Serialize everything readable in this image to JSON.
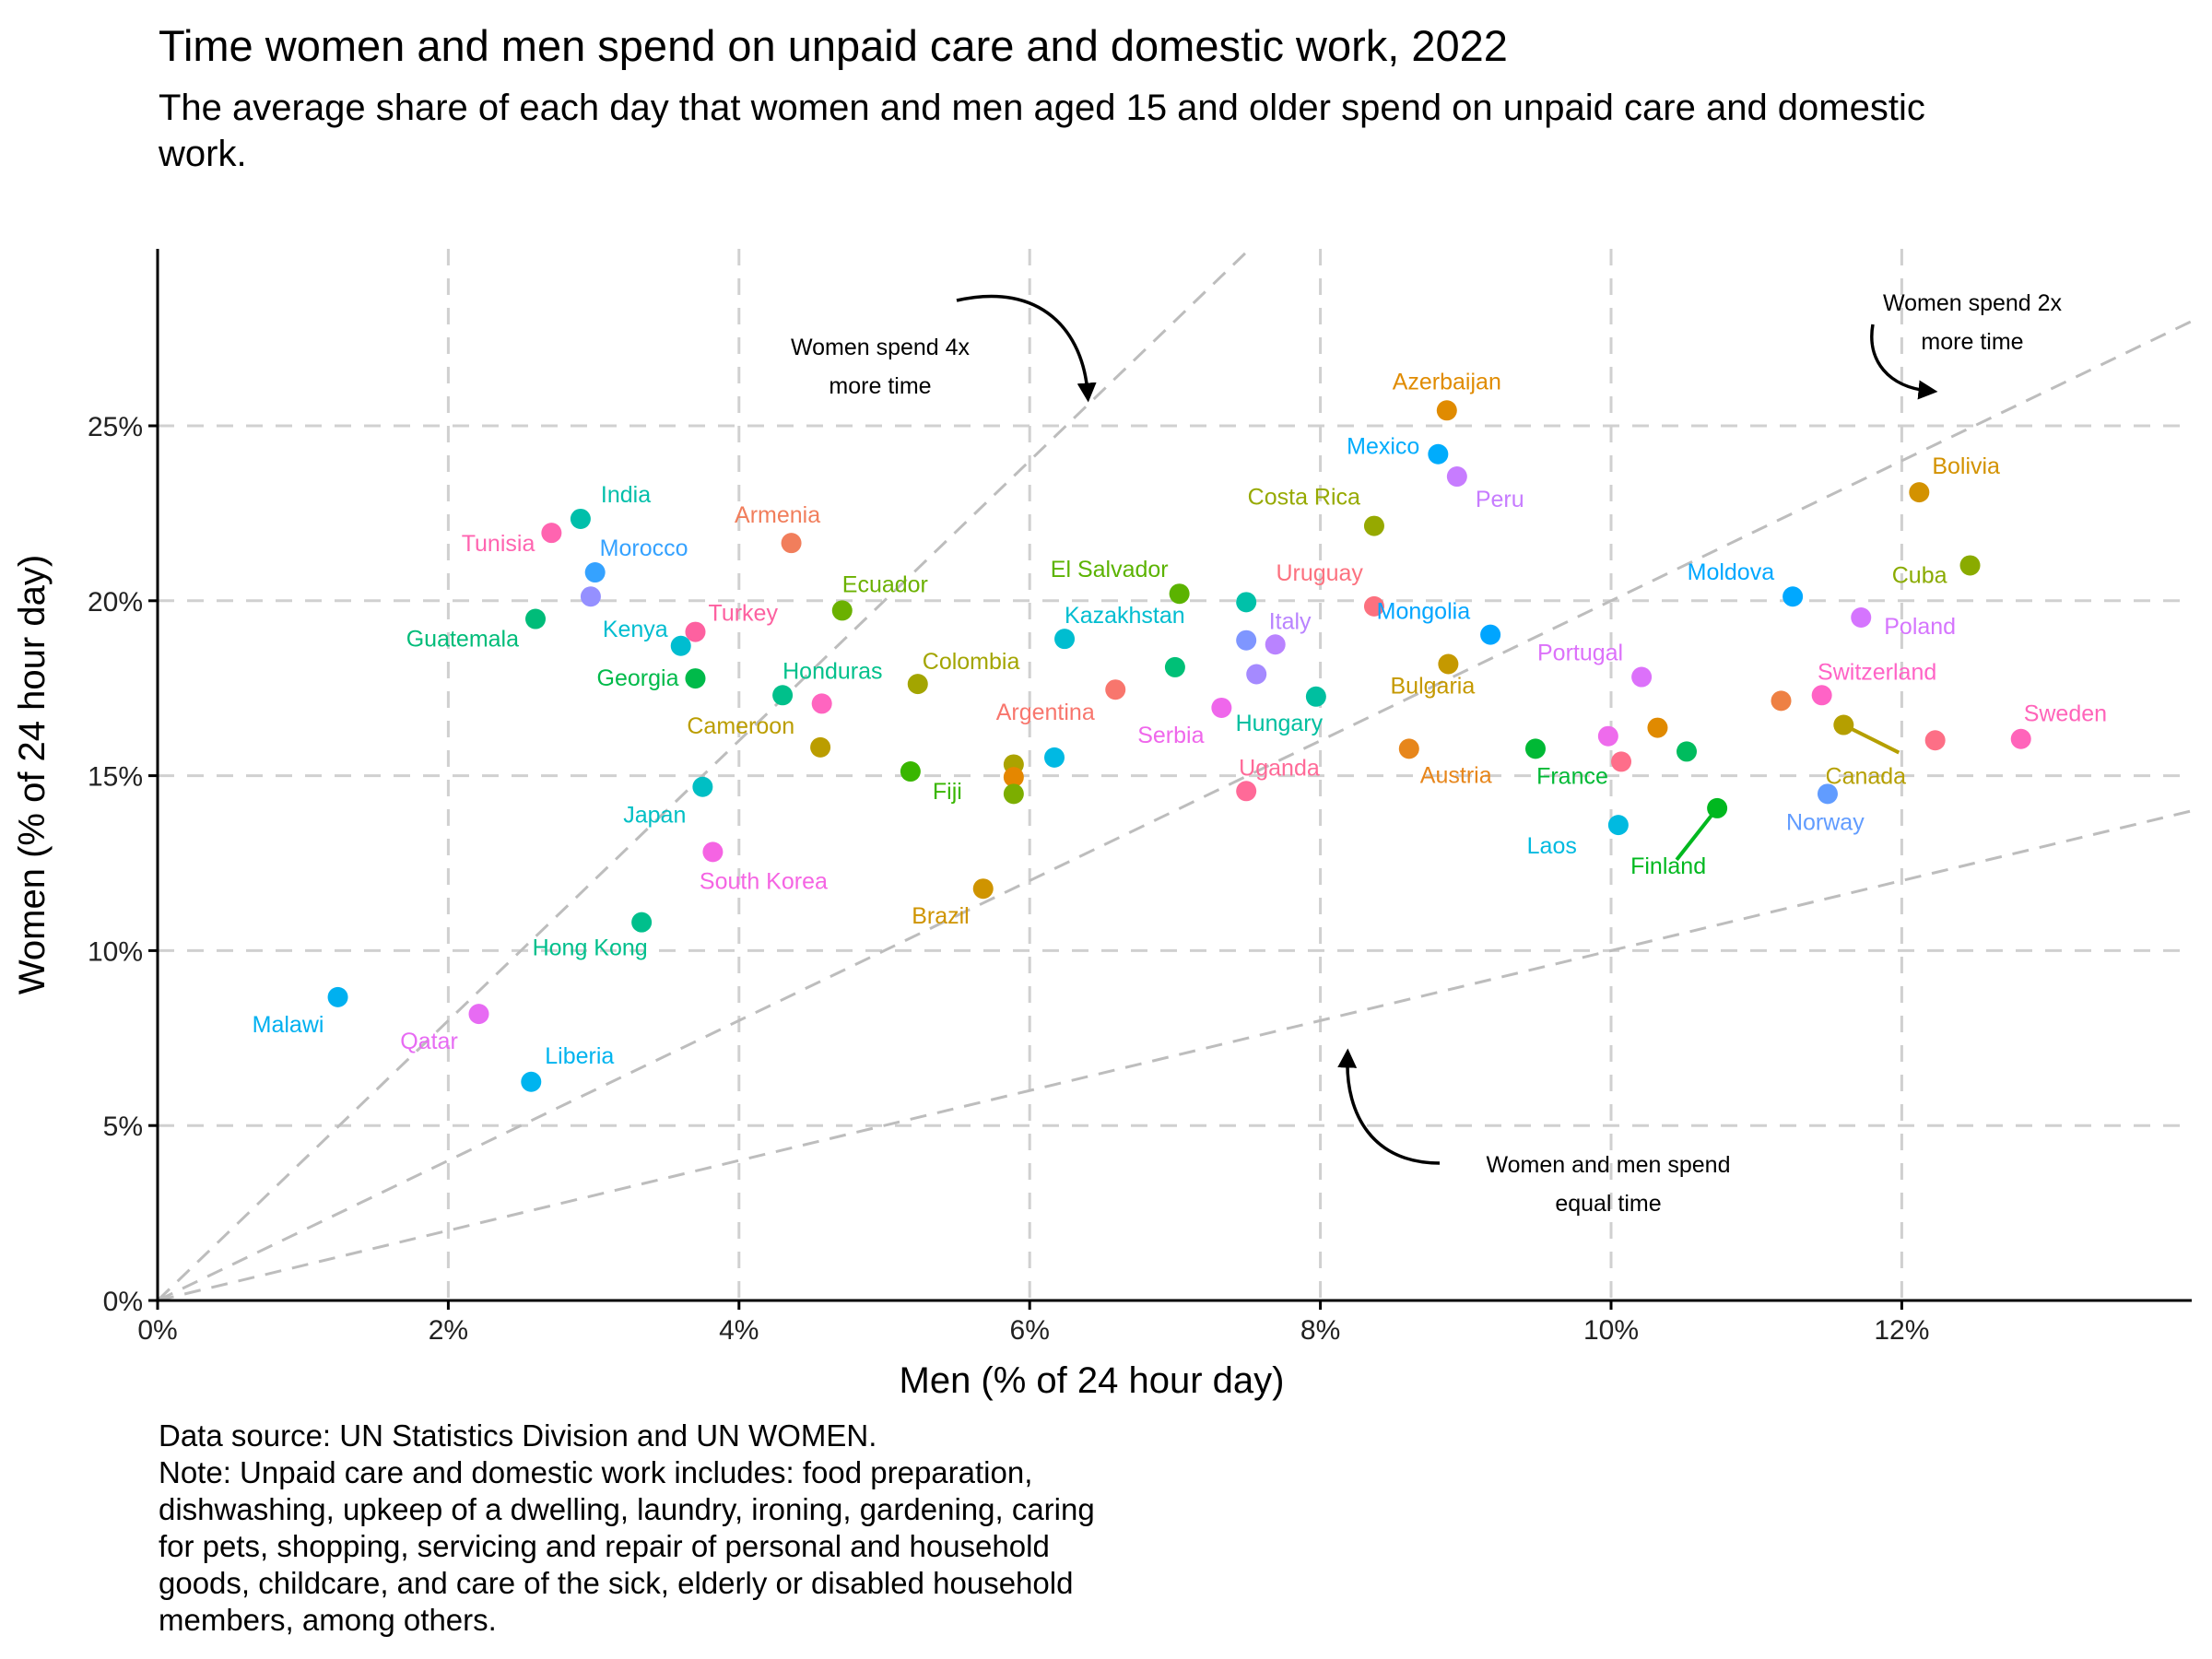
{
  "chart_data": {
    "type": "scatter",
    "title": "Time women and men spend on unpaid care and domestic work, 2022",
    "subtitle": "The average share of each day that women and men aged 15 and older spend on unpaid care and domestic work.",
    "xlabel": "Men (% of 24 hour day)",
    "ylabel": "Women (% of 24 hour day)",
    "xlim": [
      0,
      14
    ],
    "ylim": [
      0,
      30
    ],
    "xticks": [
      0,
      2,
      4,
      6,
      8,
      10,
      12
    ],
    "xtick_labels": [
      "0%",
      "2%",
      "4%",
      "6%",
      "8%",
      "10%",
      "12%"
    ],
    "yticks": [
      0,
      5,
      10,
      15,
      20,
      25
    ],
    "ytick_labels": [
      "0%",
      "5%",
      "10%",
      "15%",
      "20%",
      "25%"
    ],
    "grid": true,
    "legend": "none",
    "reference_lines": [
      {
        "ratio": 4,
        "label": "Women spend 4x more time",
        "label_lines": [
          "Women spend 4x",
          "more time"
        ]
      },
      {
        "ratio": 2,
        "label": "Women spend 2x more time",
        "label_lines": [
          "Women spend 2x",
          "more time"
        ]
      },
      {
        "ratio": 1,
        "label": "Women and men spend equal time",
        "label_lines": [
          "Women and men spend",
          "equal time"
        ]
      }
    ],
    "points": [
      {
        "country": "Malawi",
        "x": 1.24,
        "y": 8.67,
        "color": "#00B0F0",
        "label": true
      },
      {
        "country": "Qatar",
        "x": 2.21,
        "y": 8.19,
        "color": "#E76BF3",
        "label": true
      },
      {
        "country": "Liberia",
        "x": 2.57,
        "y": 6.25,
        "color": "#00B4EF",
        "label": true
      },
      {
        "country": "Hong Kong",
        "x": 3.33,
        "y": 10.81,
        "color": "#00BF8C",
        "label": true
      },
      {
        "country": "India",
        "x": 2.91,
        "y": 22.34,
        "color": "#00BFAA",
        "label": true
      },
      {
        "country": "Tunisia",
        "x": 2.71,
        "y": 21.94,
        "color": "#FF64B0",
        "label": true
      },
      {
        "country": "Morocco",
        "x": 3.01,
        "y": 20.81,
        "color": "#35A2FF",
        "label": true
      },
      {
        "country": "",
        "x": 2.98,
        "y": 20.12,
        "color": "#9590FF",
        "label": false
      },
      {
        "country": "Guatemala",
        "x": 2.6,
        "y": 19.48,
        "color": "#00BC79",
        "label": true
      },
      {
        "country": "Kenya",
        "x": 3.6,
        "y": 18.71,
        "color": "#00BDD0",
        "label": true
      },
      {
        "country": "Turkey",
        "x": 3.7,
        "y": 19.11,
        "color": "#FD61A0",
        "label": true
      },
      {
        "country": "Georgia",
        "x": 3.7,
        "y": 17.78,
        "color": "#00BA4A",
        "label": true
      },
      {
        "country": "Japan",
        "x": 3.75,
        "y": 14.68,
        "color": "#00BFC4",
        "label": true
      },
      {
        "country": "South Korea",
        "x": 3.82,
        "y": 12.82,
        "color": "#F564E3",
        "label": true
      },
      {
        "country": "Armenia",
        "x": 4.36,
        "y": 21.65,
        "color": "#F17E5C",
        "label": true
      },
      {
        "country": "Ecuador",
        "x": 4.71,
        "y": 19.72,
        "color": "#6BB100",
        "label": true
      },
      {
        "country": "Honduras",
        "x": 4.3,
        "y": 17.3,
        "color": "#00C08B",
        "label": true
      },
      {
        "country": "",
        "x": 4.57,
        "y": 17.06,
        "color": "#FF65C0",
        "label": false
      },
      {
        "country": "Cameroon",
        "x": 4.56,
        "y": 15.81,
        "color": "#BB9D00",
        "label": true
      },
      {
        "country": "Colombia",
        "x": 5.23,
        "y": 17.62,
        "color": "#A3A500",
        "label": true
      },
      {
        "country": "Fiji",
        "x": 5.18,
        "y": 15.12,
        "color": "#39B600",
        "label": true
      },
      {
        "country": "",
        "x": 5.89,
        "y": 15.32,
        "color": "#ABA300",
        "label": false
      },
      {
        "country": "",
        "x": 5.89,
        "y": 14.96,
        "color": "#E58700",
        "label": false
      },
      {
        "country": "",
        "x": 5.89,
        "y": 14.48,
        "color": "#7CAE00",
        "label": false
      },
      {
        "country": "Brazil",
        "x": 5.68,
        "y": 11.77,
        "color": "#CF9400",
        "label": true
      },
      {
        "country": "",
        "x": 6.17,
        "y": 15.52,
        "color": "#00B9E3",
        "label": false
      },
      {
        "country": "Argentina",
        "x": 6.59,
        "y": 17.46,
        "color": "#F8766D",
        "label": true
      },
      {
        "country": "Kazakhstan",
        "x": 6.24,
        "y": 18.91,
        "color": "#00BDD0",
        "label": true
      },
      {
        "country": "El Salvador",
        "x": 7.03,
        "y": 20.2,
        "color": "#5BB300",
        "label": true
      },
      {
        "country": "",
        "x": 7.0,
        "y": 18.1,
        "color": "#00C077",
        "label": false
      },
      {
        "country": "Serbia",
        "x": 7.32,
        "y": 16.94,
        "color": "#EF67EB",
        "label": true
      },
      {
        "country": "",
        "x": 7.49,
        "y": 19.96,
        "color": "#00C1A9",
        "label": false
      },
      {
        "country": "",
        "x": 7.49,
        "y": 18.87,
        "color": "#7F96FF",
        "label": false
      },
      {
        "country": "Italy",
        "x": 7.69,
        "y": 18.75,
        "color": "#B983FF",
        "label": true
      },
      {
        "country": "",
        "x": 7.56,
        "y": 17.9,
        "color": "#A58AFF",
        "label": false
      },
      {
        "country": "Hungary",
        "x": 7.97,
        "y": 17.26,
        "color": "#00BFA0",
        "label": true
      },
      {
        "country": "Uganda",
        "x": 7.49,
        "y": 14.56,
        "color": "#FF6A98",
        "label": true
      },
      {
        "country": "Azerbaijan",
        "x": 8.87,
        "y": 25.44,
        "color": "#E08B00",
        "label": true
      },
      {
        "country": "Mexico",
        "x": 8.81,
        "y": 24.19,
        "color": "#00ACFC",
        "label": true
      },
      {
        "country": "Peru",
        "x": 8.94,
        "y": 23.55,
        "color": "#C77CFF",
        "label": true
      },
      {
        "country": "Costa Rica",
        "x": 8.37,
        "y": 22.14,
        "color": "#96A900",
        "label": true
      },
      {
        "country": "Uruguay",
        "x": 8.37,
        "y": 19.84,
        "color": "#FC717F",
        "label": true
      },
      {
        "country": "Mongolia",
        "x": 9.17,
        "y": 19.03,
        "color": "#00A5FF",
        "label": true
      },
      {
        "country": "Bulgaria",
        "x": 8.88,
        "y": 18.19,
        "color": "#C59900",
        "label": true
      },
      {
        "country": "Austria",
        "x": 8.61,
        "y": 15.77,
        "color": "#E7861B",
        "label": true
      },
      {
        "country": "France",
        "x": 9.48,
        "y": 15.77,
        "color": "#00B935",
        "label": true
      },
      {
        "country": "Portugal",
        "x": 10.21,
        "y": 17.82,
        "color": "#DC71FA",
        "label": true
      },
      {
        "country": "",
        "x": 9.98,
        "y": 16.13,
        "color": "#EE6BEC",
        "label": false
      },
      {
        "country": "",
        "x": 10.07,
        "y": 15.4,
        "color": "#FE6E8A",
        "label": false
      },
      {
        "country": "",
        "x": 10.32,
        "y": 16.37,
        "color": "#E08A00",
        "label": false
      },
      {
        "country": "",
        "x": 10.52,
        "y": 15.69,
        "color": "#00BC5E",
        "label": false
      },
      {
        "country": "Laos",
        "x": 10.05,
        "y": 13.59,
        "color": "#00BAE0",
        "label": true
      },
      {
        "country": "Finland",
        "x": 10.73,
        "y": 14.07,
        "color": "#00B81F",
        "label": true
      },
      {
        "country": "Moldova",
        "x": 11.25,
        "y": 20.12,
        "color": "#00A8FF",
        "label": true
      },
      {
        "country": "",
        "x": 11.17,
        "y": 17.14,
        "color": "#EE8043",
        "label": false
      },
      {
        "country": "Switzerland",
        "x": 11.45,
        "y": 17.3,
        "color": "#FF63C6",
        "label": true
      },
      {
        "country": "Canada",
        "x": 11.6,
        "y": 16.45,
        "color": "#B59F00",
        "label": true
      },
      {
        "country": "Norway",
        "x": 11.49,
        "y": 14.48,
        "color": "#619CFF",
        "label": true
      },
      {
        "country": "Bolivia",
        "x": 12.12,
        "y": 23.1,
        "color": "#D39200",
        "label": true
      },
      {
        "country": "Cuba",
        "x": 12.47,
        "y": 21.01,
        "color": "#8AAB00",
        "label": true
      },
      {
        "country": "Poland",
        "x": 11.72,
        "y": 19.52,
        "color": "#D575FE",
        "label": true
      },
      {
        "country": "",
        "x": 12.23,
        "y": 16.01,
        "color": "#FD6F86",
        "label": false
      },
      {
        "country": "Sweden",
        "x": 12.82,
        "y": 16.05,
        "color": "#FF64BA",
        "label": true
      }
    ]
  },
  "caption": "Data source: UN Statistics Division and UN WOMEN.\nNote: Unpaid care and domestic work includes: food preparation,\ndishwashing, upkeep of a dwelling, laundry, ironing, gardening, caring\nfor pets, shopping, servicing and repair of personal and household\ngoods, childcare, and care of the sick, elderly or disabled household\nmembers, among others."
}
